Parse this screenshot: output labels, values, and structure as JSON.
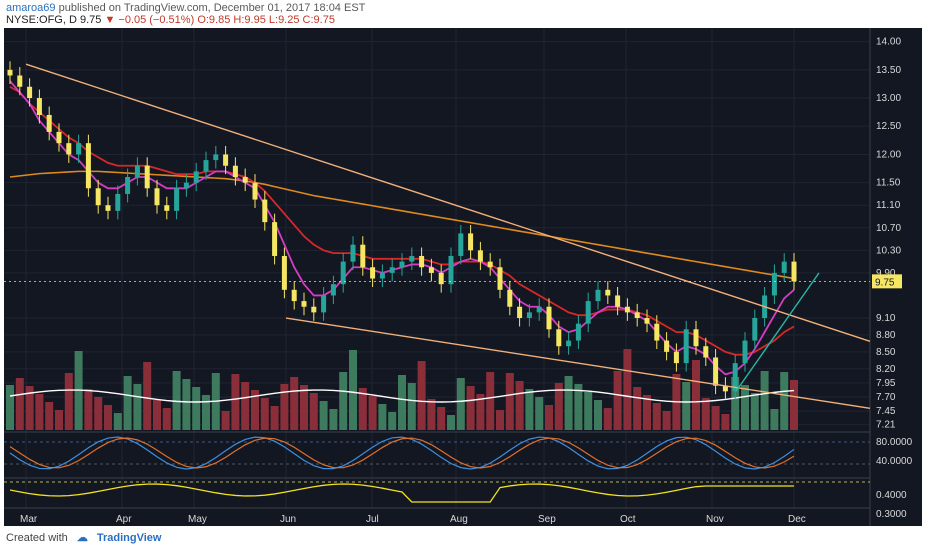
{
  "header": {
    "author": "amaroa69",
    "published": "published on TradingView.com, December 01, 2017 18:04 EST"
  },
  "ohlc": {
    "symbol": "NYSE:OFG, D",
    "last": "9.75",
    "change": "−0.05 (−0.51%)",
    "open": "O:9.85",
    "high": "H:9.95",
    "low": "L:9.25",
    "close": "C:9.75"
  },
  "footer": {
    "created_with": "Created with",
    "brand": "TradingView"
  },
  "chart_data": {
    "type": "candlestick",
    "symbol": "NYSE:OFG",
    "interval": "D",
    "price_label": "9.75",
    "yticks": [
      "14.00",
      "13.50",
      "13.00",
      "12.50",
      "12.00",
      "11.50",
      "11.10",
      "10.70",
      "10.30",
      "9.90",
      "9.10",
      "8.80",
      "8.50",
      "8.20",
      "7.95",
      "7.70",
      "7.45",
      "7.21"
    ],
    "xticks": [
      "Mar",
      "Apr",
      "May",
      "Jun",
      "Jul",
      "Aug",
      "Sep",
      "Oct",
      "Nov",
      "Dec"
    ],
    "stoch_ticks": [
      "80.0000",
      "40.0000"
    ],
    "lower_ticks": [
      "0.4000",
      "0.3000"
    ],
    "close_series": [
      13.4,
      13.2,
      13.0,
      12.7,
      12.4,
      12.2,
      12.0,
      12.2,
      11.4,
      11.1,
      11.0,
      11.3,
      11.6,
      11.8,
      11.4,
      11.1,
      11.0,
      11.4,
      11.5,
      11.7,
      11.9,
      12.0,
      11.8,
      11.6,
      11.5,
      11.2,
      10.8,
      10.2,
      9.6,
      9.4,
      9.3,
      9.2,
      9.5,
      9.7,
      10.1,
      10.4,
      10.0,
      9.8,
      9.9,
      10.0,
      10.1,
      10.2,
      10.0,
      9.9,
      9.7,
      10.2,
      10.6,
      10.3,
      10.1,
      10.0,
      9.6,
      9.3,
      9.1,
      9.2,
      9.3,
      8.9,
      8.6,
      8.7,
      9.0,
      9.4,
      9.6,
      9.5,
      9.3,
      9.2,
      9.1,
      9.0,
      8.7,
      8.5,
      8.3,
      8.9,
      8.6,
      8.4,
      7.9,
      7.8,
      8.3,
      8.7,
      9.1,
      9.5,
      9.9,
      10.1,
      9.75
    ],
    "ma_fast": [
      13.3,
      13.1,
      12.9,
      12.6,
      12.4,
      12.2,
      12.0,
      11.9,
      11.7,
      11.5,
      11.4,
      11.4,
      11.5,
      11.6,
      11.6,
      11.5,
      11.4,
      11.4,
      11.4,
      11.5,
      11.6,
      11.7,
      11.7,
      11.6,
      11.5,
      11.4,
      11.1,
      10.8,
      10.4,
      10.0,
      9.7,
      9.5,
      9.5,
      9.6,
      9.8,
      10.0,
      10.0,
      9.95,
      9.9,
      9.95,
      10.0,
      10.05,
      10.05,
      10.0,
      9.9,
      10.0,
      10.1,
      10.15,
      10.1,
      10.0,
      9.8,
      9.6,
      9.4,
      9.3,
      9.3,
      9.15,
      8.95,
      8.85,
      8.9,
      9.05,
      9.2,
      9.3,
      9.3,
      9.25,
      9.15,
      9.05,
      8.85,
      8.65,
      8.5,
      8.6,
      8.55,
      8.45,
      8.25,
      8.1,
      8.15,
      8.3,
      8.55,
      8.85,
      9.15,
      9.45,
      9.6
    ],
    "ma_mid": [
      13.2,
      13.1,
      12.9,
      12.75,
      12.6,
      12.45,
      12.3,
      12.2,
      12.05,
      11.95,
      11.85,
      11.8,
      11.8,
      11.8,
      11.8,
      11.75,
      11.7,
      11.65,
      11.65,
      11.65,
      11.7,
      11.7,
      11.7,
      11.65,
      11.6,
      11.5,
      11.35,
      11.15,
      10.95,
      10.75,
      10.55,
      10.4,
      10.3,
      10.25,
      10.25,
      10.25,
      10.2,
      10.15,
      10.15,
      10.15,
      10.15,
      10.15,
      10.15,
      10.1,
      10.05,
      10.05,
      10.1,
      10.1,
      10.1,
      10.05,
      9.95,
      9.85,
      9.7,
      9.6,
      9.5,
      9.4,
      9.3,
      9.2,
      9.15,
      9.15,
      9.2,
      9.25,
      9.25,
      9.25,
      9.2,
      9.15,
      9.05,
      8.95,
      8.85,
      8.85,
      8.8,
      8.7,
      8.6,
      8.5,
      8.45,
      8.45,
      8.5,
      8.6,
      8.7,
      8.85,
      8.95
    ],
    "ma_slow": [
      11.6,
      11.62,
      11.64,
      11.66,
      11.67,
      11.68,
      11.69,
      11.7,
      11.7,
      11.7,
      11.69,
      11.68,
      11.67,
      11.66,
      11.65,
      11.64,
      11.63,
      11.62,
      11.61,
      11.6,
      11.59,
      11.58,
      11.57,
      11.55,
      11.53,
      11.5,
      11.47,
      11.43,
      11.39,
      11.35,
      11.31,
      11.27,
      11.24,
      11.21,
      11.18,
      11.15,
      11.12,
      11.09,
      11.06,
      11.03,
      11.0,
      10.97,
      10.94,
      10.91,
      10.88,
      10.85,
      10.82,
      10.79,
      10.76,
      10.73,
      10.7,
      10.67,
      10.64,
      10.61,
      10.58,
      10.55,
      10.52,
      10.49,
      10.46,
      10.43,
      10.4,
      10.37,
      10.34,
      10.31,
      10.28,
      10.25,
      10.22,
      10.19,
      10.16,
      10.13,
      10.1,
      10.07,
      10.04,
      10.01,
      9.98,
      9.95,
      9.92,
      9.89,
      9.86,
      9.83,
      9.8
    ],
    "trendlines": [
      {
        "name": "upper-resistance",
        "from": [
          "Mar",
          13.6
        ],
        "to": [
          "Dec",
          8.9
        ]
      },
      {
        "name": "lower-support",
        "from": [
          "Jun",
          9.1
        ],
        "to": [
          "Dec",
          7.5
        ]
      },
      {
        "name": "breakout-support",
        "from": [
          "Nov",
          7.8
        ],
        "to": [
          "Dec",
          9.9
        ]
      }
    ],
    "indicators": [
      "candles",
      "moving-average-magenta",
      "moving-average-red",
      "moving-average-orange",
      "volume",
      "volume-ma",
      "stochastic",
      "yellow-oscillator"
    ]
  },
  "colors": {
    "background": "#131722",
    "candle_up": "#26a69a",
    "candle_down": "#f5e663",
    "ma_fast": "#d63cc4",
    "ma_mid": "#d62828",
    "ma_slow": "#e08a1e",
    "trendline": "#f2b07a",
    "breakout": "#29b6a4",
    "vol_up": "#3d7a5e",
    "vol_down": "#8a2e3a",
    "price_tag": "#f5e663"
  }
}
